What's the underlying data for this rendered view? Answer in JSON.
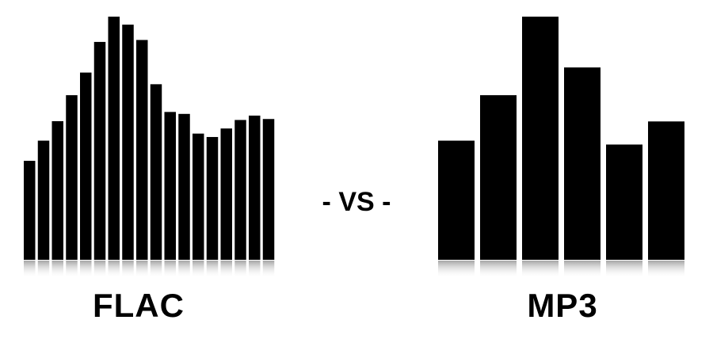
{
  "flac": {
    "label": "FLAC",
    "bars": [
      0.407,
      0.49,
      0.57,
      0.677,
      0.77,
      0.896,
      1.0,
      0.967,
      0.904,
      0.722,
      0.608,
      0.6,
      0.519,
      0.505,
      0.54,
      0.575,
      0.593,
      0.579
    ]
  },
  "mp3": {
    "label": "MP3",
    "bars": [
      0.49,
      0.677,
      1.0,
      0.791,
      0.474,
      0.569
    ]
  },
  "vs": {
    "label": "- VS -"
  },
  "colors": {
    "bar": "#000000",
    "background": "#ffffff",
    "reflection": "#bbbbbb"
  }
}
